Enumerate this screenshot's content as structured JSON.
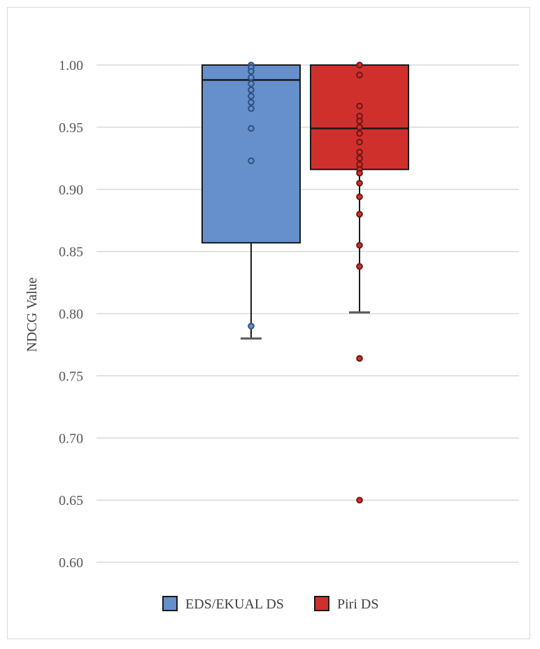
{
  "chart_data": {
    "type": "box",
    "ylabel": "NDCG Value",
    "ylim": [
      0.6,
      1.0
    ],
    "ytick_labels": [
      "0.60",
      "0.65",
      "0.70",
      "0.75",
      "0.80",
      "0.85",
      "0.90",
      "0.95",
      "1.00"
    ],
    "grid": true,
    "legend_position": "bottom",
    "series": [
      {
        "name": "EDS/EKUAL DS",
        "color": "#6590cc",
        "dark": "#2f4f80",
        "box": {
          "whisker_low": 0.78,
          "q1": 0.857,
          "median": 0.988,
          "q3": 1.0,
          "whisker_high": 1.0
        },
        "points": [
          1.0,
          0.998,
          0.995,
          0.99,
          0.985,
          0.98,
          0.975,
          0.97,
          0.965,
          0.949,
          0.923,
          0.79
        ]
      },
      {
        "name": "Piri DS",
        "color": "#d0302c",
        "dark": "#6e1515",
        "box": {
          "whisker_low": 0.801,
          "q1": 0.916,
          "median": 0.949,
          "q3": 1.0,
          "whisker_high": 1.0
        },
        "points": [
          1.0,
          0.992,
          0.967,
          0.959,
          0.955,
          0.95,
          0.945,
          0.938,
          0.93,
          0.925,
          0.92,
          0.916,
          0.913,
          0.905,
          0.894,
          0.88,
          0.855,
          0.838,
          0.764,
          0.65
        ]
      }
    ]
  }
}
